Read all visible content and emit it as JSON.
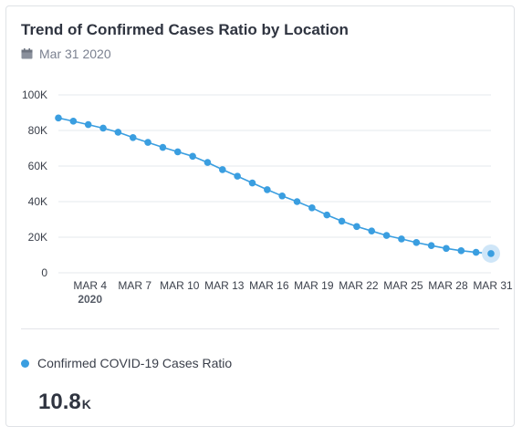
{
  "card": {
    "title": "Trend of Confirmed Cases Ratio by Location",
    "date_label": "Mar 31 2020"
  },
  "legend": {
    "label": "Confirmed COVID-19 Cases Ratio",
    "color": "#3a9ee0"
  },
  "metric": {
    "value": "10.8",
    "suffix": "K"
  },
  "colors": {
    "series": "#3a9ee0",
    "highlight": "#cfe6f8",
    "grid": "#e6e8ec",
    "tick_text": "#3a3f4a"
  },
  "icons": {
    "date": "calendar-icon"
  },
  "chart_data": {
    "type": "line",
    "x": [
      "Mar 2",
      "Mar 3",
      "Mar 4",
      "Mar 5",
      "Mar 6",
      "Mar 7",
      "Mar 8",
      "Mar 9",
      "Mar 10",
      "Mar 11",
      "Mar 12",
      "Mar 13",
      "Mar 14",
      "Mar 15",
      "Mar 16",
      "Mar 17",
      "Mar 18",
      "Mar 19",
      "Mar 20",
      "Mar 21",
      "Mar 22",
      "Mar 23",
      "Mar 24",
      "Mar 25",
      "Mar 26",
      "Mar 27",
      "Mar 28",
      "Mar 29",
      "Mar 30",
      "Mar 31"
    ],
    "series": [
      {
        "name": "Confirmed COVID-19 Cases Ratio",
        "values": [
          87000,
          85200,
          83300,
          81300,
          79000,
          76000,
          73300,
          70500,
          68000,
          65500,
          62000,
          58000,
          54300,
          50500,
          46700,
          43200,
          40000,
          36500,
          32500,
          29000,
          26000,
          23500,
          21000,
          19000,
          17000,
          15300,
          13700,
          12400,
          11500,
          10800
        ]
      }
    ],
    "x_ticks": [
      {
        "label": "MAR 4",
        "sublabel": "2020",
        "index": 2
      },
      {
        "label": "MAR 7",
        "sublabel": "",
        "index": 5
      },
      {
        "label": "MAR 10",
        "sublabel": "",
        "index": 8
      },
      {
        "label": "MAR 13",
        "sublabel": "",
        "index": 11
      },
      {
        "label": "MAR 16",
        "sublabel": "",
        "index": 14
      },
      {
        "label": "MAR 19",
        "sublabel": "",
        "index": 17
      },
      {
        "label": "MAR 22",
        "sublabel": "",
        "index": 20
      },
      {
        "label": "MAR 25",
        "sublabel": "",
        "index": 23
      },
      {
        "label": "MAR 28",
        "sublabel": "",
        "index": 26
      },
      {
        "label": "MAR 31",
        "sublabel": "",
        "index": 29
      }
    ],
    "y_ticks": [
      {
        "value": 0,
        "label": "0"
      },
      {
        "value": 20000,
        "label": "20K"
      },
      {
        "value": 40000,
        "label": "40K"
      },
      {
        "value": 60000,
        "label": "60K"
      },
      {
        "value": 80000,
        "label": "80K"
      },
      {
        "value": 100000,
        "label": "100K"
      }
    ],
    "ylim": [
      0,
      100000
    ],
    "grid": true,
    "highlighted_point": "last"
  }
}
